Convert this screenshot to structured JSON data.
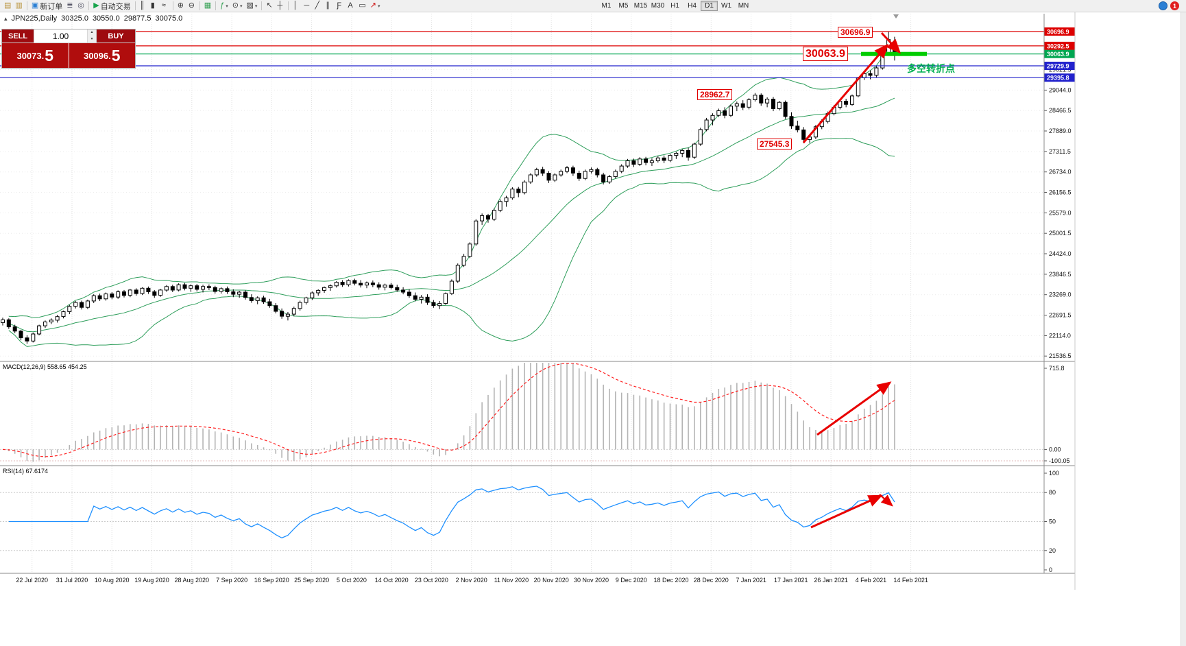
{
  "icons": {
    "caret_up": "▴",
    "caret_down": "▾",
    "caret": "▾",
    "chart_corner": "▴"
  },
  "window_title_row": {
    "symbol_period": "JPN225,Daily",
    "open": "30325.0",
    "high": "30550.0",
    "low": "29877.5",
    "close": "30075.0"
  },
  "toolbar": {
    "groups": [
      {
        "items": [
          {
            "name": "charts-window-icon",
            "glyph": "▤",
            "color": "#b8923a"
          },
          {
            "name": "profiles-icon",
            "glyph": "▥",
            "color": "#b8923a"
          }
        ]
      },
      {
        "items": [
          {
            "name": "new-order-button",
            "glyph": "▣",
            "color": "#2a7fd4",
            "label": "新订单"
          },
          {
            "name": "market-depth-icon",
            "glyph": "≣",
            "color": "#556"
          },
          {
            "name": "mql5-community-icon",
            "glyph": "◎",
            "color": "#556"
          }
        ]
      },
      {
        "items": [
          {
            "name": "autotrade-button",
            "glyph": "▶",
            "color": "#18a44c",
            "label": "自动交易"
          }
        ]
      },
      {
        "items": [
          {
            "name": "bar-chart-icon",
            "glyph": "║",
            "color": "#333"
          },
          {
            "name": "candlestick-chart-icon",
            "glyph": "▮",
            "color": "#333"
          },
          {
            "name": "line-chart-icon",
            "glyph": "≈",
            "color": "#333"
          }
        ]
      },
      {
        "items": [
          {
            "name": "zoom-in-icon",
            "glyph": "⊕",
            "color": "#333"
          },
          {
            "name": "zoom-out-icon",
            "glyph": "⊖",
            "color": "#333"
          }
        ]
      },
      {
        "items": [
          {
            "name": "tile-windows-icon",
            "glyph": "▦",
            "color": "#2f9e4f"
          }
        ]
      },
      {
        "items": [
          {
            "name": "indicators-icon",
            "glyph": "ƒ",
            "color": "#2f9e4f",
            "caret": true
          },
          {
            "name": "periods-icon",
            "glyph": "⊙",
            "color": "#333",
            "caret": true
          },
          {
            "name": "templates-icon",
            "glyph": "▨",
            "color": "#333",
            "caret": true
          }
        ]
      },
      {
        "items": [
          {
            "name": "cursor-icon",
            "glyph": "↖",
            "color": "#333"
          },
          {
            "name": "crosshair-icon",
            "glyph": "┼",
            "color": "#333"
          }
        ]
      },
      {
        "items": [
          {
            "name": "vertical-line-icon",
            "glyph": "│",
            "color": "#333"
          },
          {
            "name": "horizontal-line-icon",
            "glyph": "─",
            "color": "#333"
          },
          {
            "name": "trendline-icon",
            "glyph": "╱",
            "color": "#333"
          },
          {
            "name": "equidistant-channel-icon",
            "glyph": "∥",
            "color": "#333"
          },
          {
            "name": "fibonacci-icon",
            "glyph": "Ƒ",
            "color": "#333"
          },
          {
            "name": "text-tool-icon",
            "glyph": "A",
            "color": "#333"
          },
          {
            "name": "text-label-icon",
            "glyph": "▭",
            "color": "#333"
          },
          {
            "name": "arrows-tool-icon",
            "glyph": "↗",
            "color": "#c00",
            "caret": true
          }
        ]
      }
    ],
    "timeframes": {
      "items": [
        "M1",
        "M5",
        "M15",
        "M30",
        "H1",
        "H4",
        "D1",
        "W1",
        "MN"
      ],
      "active": "D1"
    },
    "notifications": {
      "badge": "1"
    }
  },
  "trade_panel": {
    "sell_label": "SELL",
    "buy_label": "BUY",
    "volume": "1.00",
    "sell_price": "30073.5",
    "buy_price": "30096.5"
  },
  "annotations": {
    "high": "30696.9",
    "resistance": "30063.9",
    "jan_peak": "28962.7",
    "jan_low": "27545.3",
    "turning_point": "多空转折点"
  },
  "indicator_labels": {
    "macd": "MACD(12,26,9) 558.65 454.25",
    "rsi": "RSI(14) 67.6174"
  },
  "chart_data": {
    "type": "candlestick",
    "symbol": "JPN225",
    "period": "Daily",
    "current_bar": {
      "open": 30325.0,
      "high": 30550.0,
      "low": 29877.5,
      "close": 30075.0
    },
    "date_labels": [
      "22 Jul 2020",
      "31 Jul 2020",
      "10 Aug 2020",
      "19 Aug 2020",
      "28 Aug 2020",
      "7 Sep 2020",
      "16 Sep 2020",
      "25 Sep 2020",
      "5 Oct 2020",
      "14 Oct 2020",
      "23 Oct 2020",
      "2 Nov 2020",
      "11 Nov 2020",
      "20 Nov 2020",
      "30 Nov 2020",
      "9 Dec 2020",
      "18 Dec 2020",
      "28 Dec 2020",
      "7 Jan 2021",
      "17 Jan 2021",
      "26 Jan 2021",
      "4 Feb 2021",
      "14 Feb 2021"
    ],
    "price_scale": {
      "gridline_labels": [
        "29621.5",
        "29044.0",
        "28466.5",
        "27889.0",
        "27311.5",
        "26734.0",
        "26156.5",
        "25579.0",
        "25001.5",
        "24424.0",
        "23846.5",
        "23269.0",
        "22691.5",
        "22114.0",
        "21536.5"
      ]
    },
    "hlines": [
      {
        "price": 30696.9,
        "color": "#dd0000"
      },
      {
        "price": 30292.5,
        "color": "#dd0000"
      },
      {
        "price": 30063.9,
        "color": "#00a651"
      },
      {
        "price": 29729.9,
        "color": "#2222cc"
      },
      {
        "price": 29395.8,
        "color": "#2222cc"
      }
    ],
    "indicators": {
      "bollinger": {
        "period": 20,
        "deviations": 2,
        "color": "#2e9e5b"
      },
      "macd": {
        "fast": 12,
        "slow": 26,
        "signal_period": 9,
        "value": 558.65,
        "signal": 454.25,
        "scale_labels": [
          "715.8",
          "0.00",
          "-100.05"
        ],
        "histogram_color": "#b4b4b4",
        "signal_color": "#ff2222"
      },
      "rsi": {
        "period": 14,
        "value": 67.6174,
        "scale_labels": [
          "100",
          "80",
          "50",
          "20",
          "0"
        ],
        "levels": [
          80,
          50,
          20
        ],
        "color": "#1E90FF"
      }
    },
    "drawings": {
      "trend_arrows_color": "#e80000",
      "highlight_segment_color": "#00cc00"
    },
    "candles": [
      [
        22480,
        22620,
        22400,
        22560
      ],
      [
        22560,
        22600,
        22300,
        22360
      ],
      [
        22360,
        22420,
        22180,
        22240
      ],
      [
        22240,
        22280,
        21980,
        22050
      ],
      [
        22050,
        22120,
        21880,
        21960
      ],
      [
        21960,
        22200,
        21920,
        22160
      ],
      [
        22160,
        22420,
        22120,
        22390
      ],
      [
        22390,
        22540,
        22330,
        22500
      ],
      [
        22500,
        22600,
        22440,
        22550
      ],
      [
        22550,
        22700,
        22480,
        22650
      ],
      [
        22650,
        22820,
        22600,
        22790
      ],
      [
        22790,
        22980,
        22720,
        22940
      ],
      [
        22940,
        23090,
        22880,
        23050
      ],
      [
        23050,
        23100,
        22850,
        22910
      ],
      [
        22910,
        23130,
        22860,
        23090
      ],
      [
        23090,
        23280,
        23030,
        23240
      ],
      [
        23240,
        23300,
        23090,
        23150
      ],
      [
        23150,
        23330,
        23100,
        23290
      ],
      [
        23290,
        23340,
        23140,
        23200
      ],
      [
        23200,
        23390,
        23150,
        23350
      ],
      [
        23350,
        23400,
        23190,
        23250
      ],
      [
        23250,
        23430,
        23200,
        23400
      ],
      [
        23400,
        23450,
        23240,
        23300
      ],
      [
        23300,
        23480,
        23260,
        23450
      ],
      [
        23450,
        23500,
        23290,
        23350
      ],
      [
        23350,
        23400,
        23180,
        23250
      ],
      [
        23250,
        23430,
        23210,
        23400
      ],
      [
        23400,
        23540,
        23350,
        23500
      ],
      [
        23500,
        23550,
        23340,
        23400
      ],
      [
        23400,
        23590,
        23360,
        23550
      ],
      [
        23550,
        23600,
        23390,
        23450
      ],
      [
        23450,
        23560,
        23350,
        23520
      ],
      [
        23520,
        23570,
        23360,
        23420
      ],
      [
        23420,
        23550,
        23330,
        23500
      ],
      [
        23500,
        23560,
        23400,
        23470
      ],
      [
        23470,
        23520,
        23300,
        23360
      ],
      [
        23360,
        23480,
        23300,
        23440
      ],
      [
        23440,
        23500,
        23290,
        23350
      ],
      [
        23350,
        23420,
        23200,
        23280
      ],
      [
        23280,
        23380,
        23180,
        23340
      ],
      [
        23340,
        23390,
        23130,
        23190
      ],
      [
        23190,
        23280,
        23040,
        23100
      ],
      [
        23100,
        23220,
        23000,
        23180
      ],
      [
        23180,
        23240,
        23010,
        23070
      ],
      [
        23070,
        23150,
        22900,
        22960
      ],
      [
        22960,
        23030,
        22740,
        22800
      ],
      [
        22800,
        22880,
        22590,
        22660
      ],
      [
        22660,
        22780,
        22540,
        22720
      ],
      [
        22720,
        22930,
        22660,
        22880
      ],
      [
        22880,
        23100,
        22820,
        23050
      ],
      [
        23050,
        23210,
        22990,
        23180
      ],
      [
        23180,
        23360,
        23120,
        23320
      ],
      [
        23320,
        23420,
        23240,
        23390
      ],
      [
        23390,
        23500,
        23320,
        23470
      ],
      [
        23470,
        23560,
        23380,
        23520
      ],
      [
        23520,
        23650,
        23470,
        23620
      ],
      [
        23620,
        23680,
        23490,
        23550
      ],
      [
        23550,
        23700,
        23500,
        23670
      ],
      [
        23670,
        23720,
        23530,
        23590
      ],
      [
        23590,
        23680,
        23470,
        23540
      ],
      [
        23540,
        23640,
        23450,
        23600
      ],
      [
        23600,
        23670,
        23480,
        23550
      ],
      [
        23550,
        23620,
        23410,
        23480
      ],
      [
        23480,
        23580,
        23390,
        23540
      ],
      [
        23540,
        23600,
        23420,
        23470
      ],
      [
        23470,
        23550,
        23350,
        23400
      ],
      [
        23400,
        23480,
        23280,
        23340
      ],
      [
        23340,
        23420,
        23180,
        23240
      ],
      [
        23240,
        23330,
        23080,
        23140
      ],
      [
        23140,
        23260,
        23020,
        23200
      ],
      [
        23200,
        23280,
        22980,
        23050
      ],
      [
        23050,
        23120,
        22900,
        22960
      ],
      [
        22960,
        23090,
        22860,
        23020
      ],
      [
        23020,
        23330,
        22980,
        23300
      ],
      [
        23300,
        23700,
        23260,
        23650
      ],
      [
        23650,
        24150,
        23600,
        24100
      ],
      [
        24100,
        24420,
        24050,
        24350
      ],
      [
        24350,
        24750,
        24300,
        24700
      ],
      [
        24700,
        25400,
        24650,
        25350
      ],
      [
        25350,
        25560,
        25240,
        25500
      ],
      [
        25500,
        25550,
        25300,
        25400
      ],
      [
        25400,
        25700,
        25350,
        25650
      ],
      [
        25650,
        25960,
        25600,
        25900
      ],
      [
        25900,
        26060,
        25750,
        26000
      ],
      [
        26000,
        26300,
        25950,
        26250
      ],
      [
        26250,
        26310,
        26020,
        26150
      ],
      [
        26150,
        26500,
        26100,
        26450
      ],
      [
        26450,
        26700,
        26400,
        26650
      ],
      [
        26650,
        26850,
        26600,
        26800
      ],
      [
        26800,
        26880,
        26620,
        26700
      ],
      [
        26700,
        26760,
        26420,
        26500
      ],
      [
        26500,
        26700,
        26450,
        26650
      ],
      [
        26650,
        26800,
        26600,
        26750
      ],
      [
        26750,
        26900,
        26700,
        26850
      ],
      [
        26850,
        26910,
        26620,
        26700
      ],
      [
        26700,
        26770,
        26480,
        26550
      ],
      [
        26550,
        26800,
        26500,
        26750
      ],
      [
        26750,
        26860,
        26690,
        26800
      ],
      [
        26800,
        26850,
        26580,
        26650
      ],
      [
        26650,
        26710,
        26380,
        26450
      ],
      [
        26450,
        26650,
        26400,
        26600
      ],
      [
        26600,
        26800,
        26550,
        26750
      ],
      [
        26750,
        26950,
        26700,
        26900
      ],
      [
        26900,
        27100,
        26850,
        27050
      ],
      [
        27050,
        27110,
        26870,
        26950
      ],
      [
        26950,
        27150,
        26900,
        27100
      ],
      [
        27100,
        27160,
        26920,
        27000
      ],
      [
        27000,
        27120,
        26900,
        27050
      ],
      [
        27050,
        27180,
        27000,
        27130
      ],
      [
        27130,
        27200,
        26980,
        27060
      ],
      [
        27060,
        27240,
        27010,
        27200
      ],
      [
        27200,
        27300,
        27100,
        27260
      ],
      [
        27260,
        27380,
        27150,
        27340
      ],
      [
        27340,
        27420,
        27050,
        27150
      ],
      [
        27150,
        27560,
        27100,
        27520
      ],
      [
        27520,
        27980,
        27470,
        27930
      ],
      [
        27930,
        28260,
        27880,
        28200
      ],
      [
        28200,
        28390,
        28050,
        28330
      ],
      [
        28330,
        28520,
        28280,
        28460
      ],
      [
        28460,
        28560,
        28250,
        28330
      ],
      [
        28330,
        28640,
        28280,
        28590
      ],
      [
        28590,
        28720,
        28450,
        28660
      ],
      [
        28660,
        28760,
        28480,
        28560
      ],
      [
        28560,
        28820,
        28500,
        28770
      ],
      [
        28770,
        28962.7,
        28720,
        28900
      ],
      [
        28900,
        28950,
        28600,
        28680
      ],
      [
        28680,
        28840,
        28560,
        28790
      ],
      [
        28790,
        28850,
        28450,
        28520
      ],
      [
        28520,
        28740,
        28470,
        28700
      ],
      [
        28700,
        28750,
        28230,
        28300
      ],
      [
        28300,
        28420,
        27950,
        28030
      ],
      [
        28030,
        28180,
        27850,
        27920
      ],
      [
        27920,
        28000,
        27545.3,
        27650
      ],
      [
        27650,
        27780,
        27560,
        27720
      ],
      [
        27720,
        28060,
        27660,
        28010
      ],
      [
        28010,
        28220,
        27940,
        28160
      ],
      [
        28160,
        28440,
        28100,
        28380
      ],
      [
        28380,
        28620,
        28330,
        28560
      ],
      [
        28560,
        28790,
        28500,
        28730
      ],
      [
        28730,
        28800,
        28560,
        28640
      ],
      [
        28640,
        28920,
        28600,
        28880
      ],
      [
        28880,
        29420,
        28840,
        29390
      ],
      [
        29390,
        29590,
        29330,
        29510
      ],
      [
        29510,
        29600,
        29350,
        29460
      ],
      [
        29460,
        29720,
        29400,
        29670
      ],
      [
        29670,
        30120,
        29620,
        30080
      ],
      [
        30080,
        30696.9,
        30020,
        30470
      ],
      [
        30325,
        30550,
        29877.5,
        30075
      ]
    ]
  }
}
